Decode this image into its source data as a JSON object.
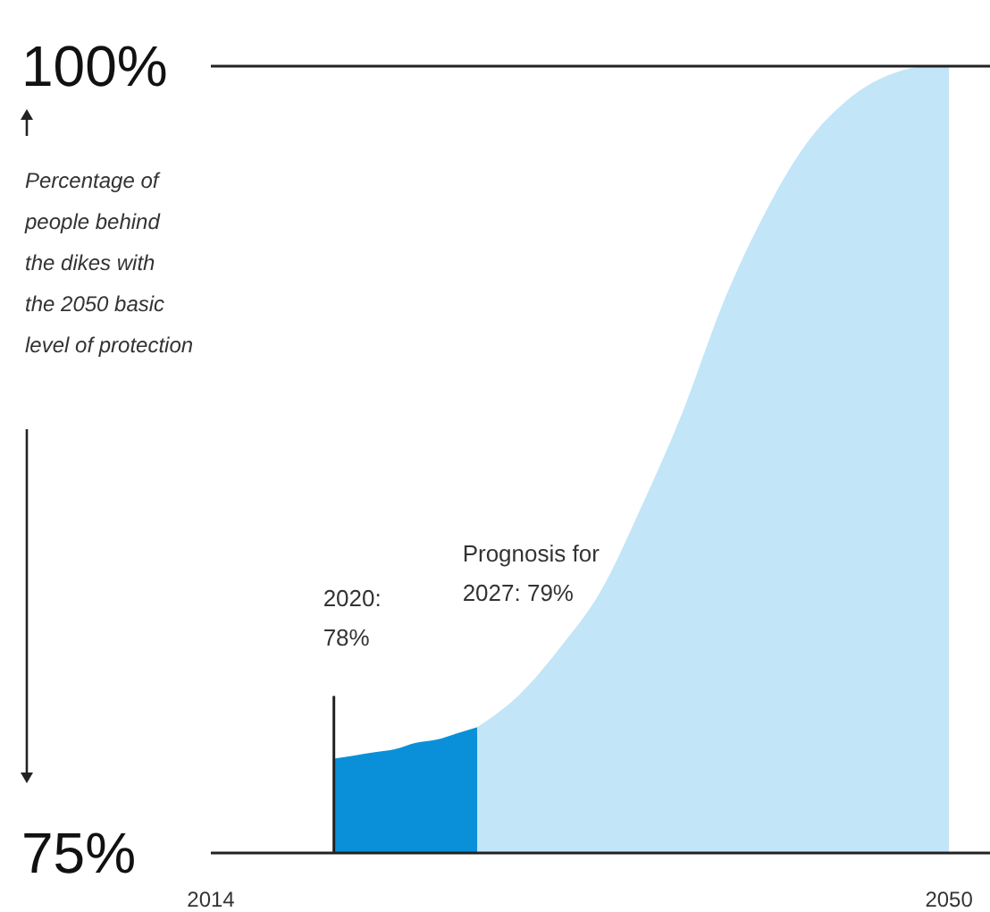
{
  "chart_data": {
    "type": "area",
    "ylabel": "Percentage of\npeople behind\nthe dikes with\nthe 2050 basic\nlevel of protection",
    "xlim": [
      2014,
      2052
    ],
    "xticks": [
      2014,
      2050
    ],
    "ylim": [
      75,
      100
    ],
    "yticks": [
      {
        "value": 75,
        "label": "75%"
      },
      {
        "value": 100,
        "label": "100%"
      }
    ],
    "ref_lines": [
      {
        "axis": "y",
        "value": 100
      }
    ],
    "series": [
      {
        "color": "#0a90d8",
        "x": [
          2020,
          2021,
          2022,
          2023,
          2024,
          2025,
          2026,
          2027
        ],
        "values": [
          78,
          78.1,
          78.2,
          78.3,
          78.5,
          78.6,
          78.8,
          79
        ]
      },
      {
        "color": "#c2e5f8",
        "x": [
          2027,
          2029,
          2031,
          2033,
          2035,
          2037,
          2039,
          2041,
          2043,
          2045,
          2047,
          2049,
          2050
        ],
        "values": [
          79,
          80,
          81.5,
          83.3,
          86,
          89,
          92.5,
          95.3,
          97.5,
          98.9,
          99.7,
          100,
          100
        ]
      }
    ],
    "annotations": [
      "2020:\n78%",
      "Prognosis for\n2027: 79%"
    ]
  }
}
